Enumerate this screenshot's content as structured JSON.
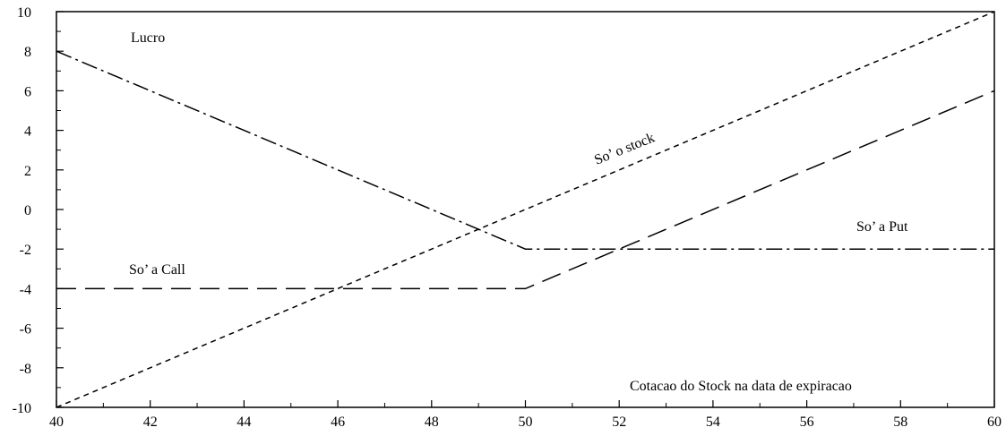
{
  "chart_data": {
    "type": "line",
    "title": "",
    "xlabel": "",
    "ylabel": "",
    "xlim": [
      40,
      60
    ],
    "ylim": [
      -10,
      10
    ],
    "x_ticks": [
      40,
      42,
      44,
      46,
      48,
      50,
      52,
      54,
      56,
      58,
      60
    ],
    "y_ticks": [
      -10,
      -8,
      -6,
      -4,
      -2,
      0,
      2,
      4,
      6,
      8,
      10
    ],
    "grid": false,
    "legend": "none",
    "series": [
      {
        "name": "So' o stock",
        "style": "dashed-short",
        "color": "#000000",
        "x": [
          40,
          60
        ],
        "y": [
          -10,
          10
        ]
      },
      {
        "name": "So' a Call",
        "style": "dashed-long",
        "color": "#000000",
        "x": [
          40,
          50,
          60
        ],
        "y": [
          -4,
          -4,
          6
        ]
      },
      {
        "name": "So' a Put",
        "style": "dash-dot",
        "color": "#000000",
        "x": [
          40,
          50,
          60
        ],
        "y": [
          8,
          -2,
          -2
        ]
      }
    ],
    "annotations": [
      {
        "id": "lucro",
        "text": "Lucro"
      },
      {
        "id": "stock",
        "text": "So’ o stock"
      },
      {
        "id": "put",
        "text": "So’ a Put"
      },
      {
        "id": "call",
        "text": "So’ a Call"
      },
      {
        "id": "xcaption",
        "text": "Cotacao do Stock na data de expiracao"
      }
    ]
  }
}
